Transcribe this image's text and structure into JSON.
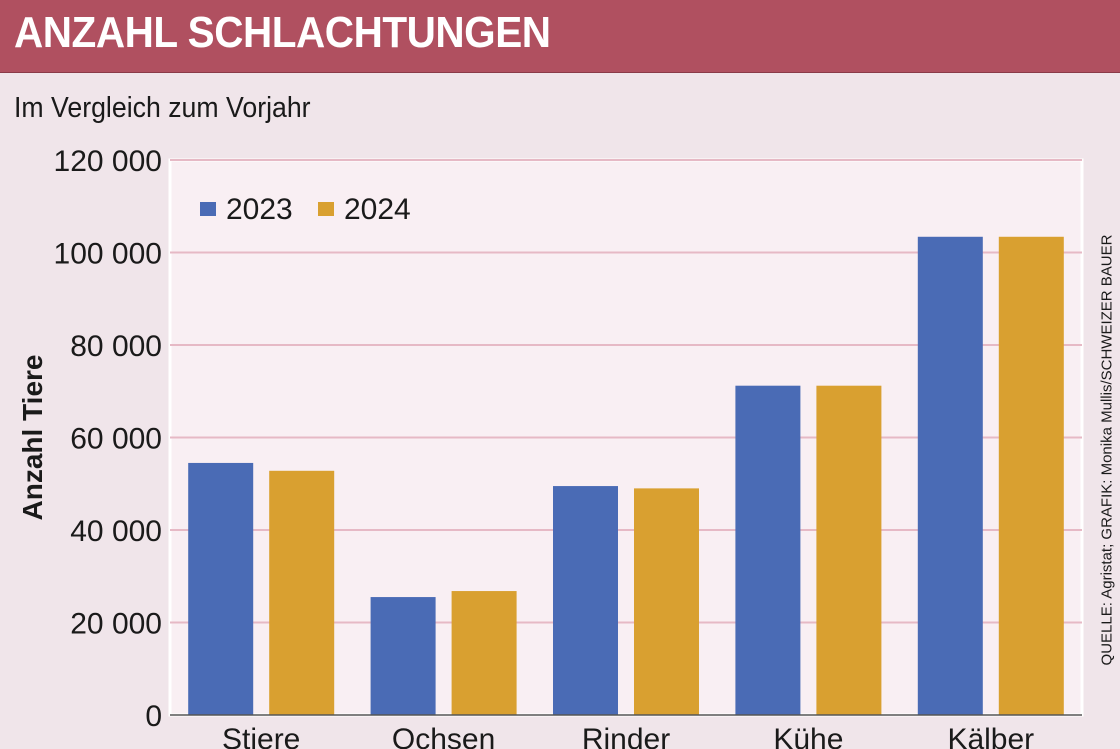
{
  "header": {
    "title": "ANZAHL SCHLACHTUNGEN",
    "subtitle": "Im Vergleich zum Vorjahr"
  },
  "source": "QUELLE: Agristat; GRAFIK: Monika Mullis/SCHWEIZER BAUER",
  "chart_data": {
    "type": "bar",
    "title": "ANZAHL SCHLACHTUNGEN",
    "subtitle": "Im Vergleich zum Vorjahr",
    "xlabel": "",
    "ylabel": "Anzahl Tiere",
    "categories": [
      "Stiere",
      "Ochsen",
      "Rinder",
      "Kühe",
      "Kälber"
    ],
    "series": [
      {
        "name": "2023",
        "color": "#4a6bb5",
        "values": [
          54500,
          25500,
          49500,
          71200,
          103400
        ]
      },
      {
        "name": "2024",
        "color": "#d9a030",
        "values": [
          52800,
          26800,
          49000,
          71200,
          103400
        ]
      }
    ],
    "ylim": [
      0,
      120000
    ],
    "yticks": [
      0,
      20000,
      40000,
      60000,
      80000,
      100000,
      120000
    ],
    "ytick_labels": [
      "0",
      "20 000",
      "40 000",
      "60 000",
      "80 000",
      "100 000",
      "120 000"
    ],
    "grid": true,
    "legend": "top-left"
  }
}
